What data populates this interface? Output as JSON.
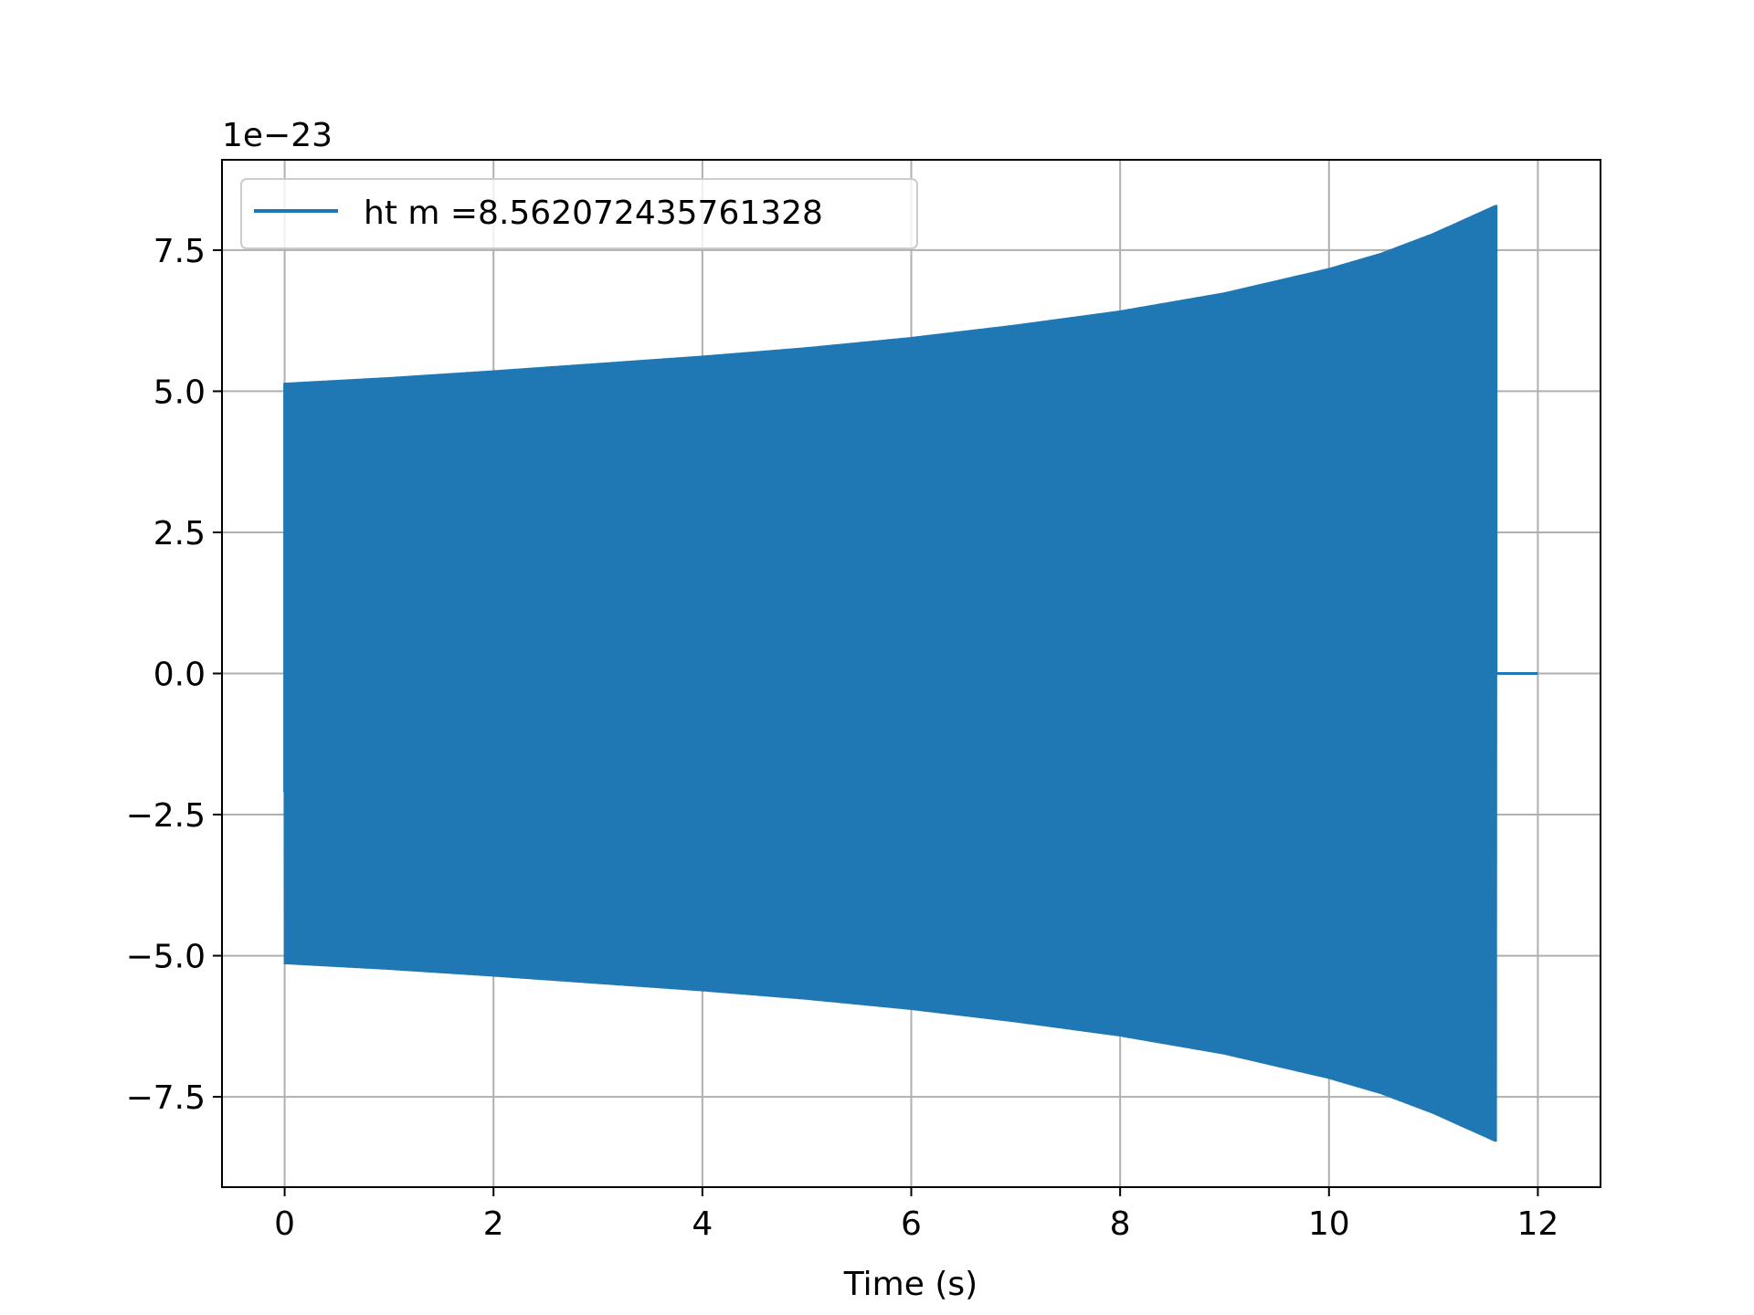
{
  "chart_data": {
    "type": "line",
    "title": "",
    "xlabel": "Time (s)",
    "ylabel": "",
    "y_offset_label": "1e−23",
    "xlim": [
      -0.6,
      12.6
    ],
    "ylim": [
      -9.1,
      9.1
    ],
    "x_ticks": [
      0,
      2,
      4,
      6,
      8,
      10,
      12
    ],
    "x_tick_labels": [
      "0",
      "2",
      "4",
      "6",
      "8",
      "10",
      "12"
    ],
    "y_ticks": [
      -7.5,
      -5.0,
      -2.5,
      0.0,
      2.5,
      5.0,
      7.5
    ],
    "y_tick_labels": [
      "−7.5",
      "−5.0",
      "−2.5",
      "0.0",
      "2.5",
      "5.0",
      "7.5"
    ],
    "grid": true,
    "legend_position": "top-left",
    "series": [
      {
        "name": "ht m =8.562072435761328",
        "color": "#1f77b4",
        "signal_end": 11.6,
        "x_end": 12.0,
        "envelope": {
          "t": [
            0,
            1,
            2,
            3,
            4,
            5,
            6,
            7,
            8,
            9,
            10,
            10.5,
            11,
            11.3,
            11.6
          ],
          "amp": [
            5.15,
            5.25,
            5.37,
            5.5,
            5.63,
            5.78,
            5.96,
            6.18,
            6.43,
            6.75,
            7.18,
            7.45,
            7.8,
            8.05,
            8.3
          ]
        }
      }
    ]
  }
}
